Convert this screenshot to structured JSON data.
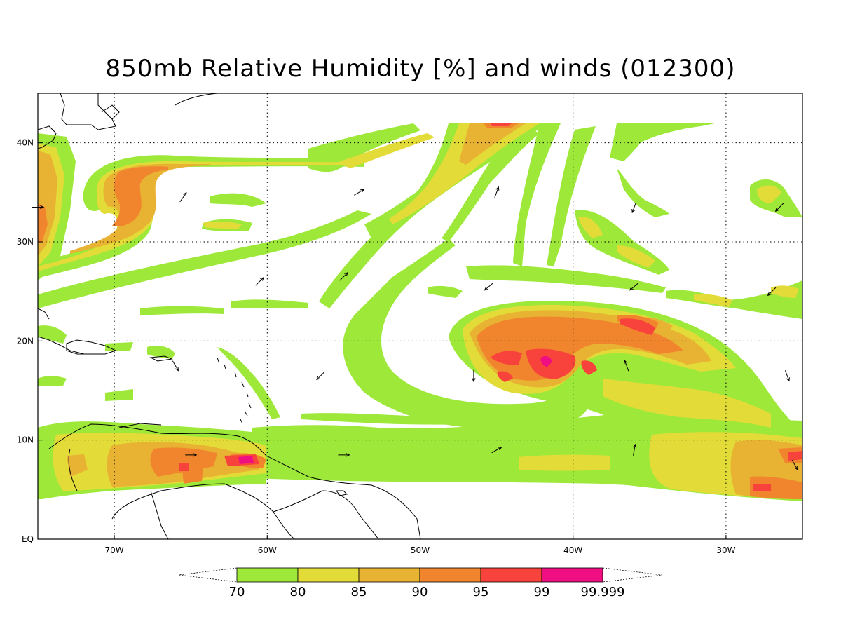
{
  "title": "850mb Relative Humidity [%] and winds (012300)",
  "colors": {
    "background": "#ffffff",
    "rh70": "#9ee83a",
    "rh80": "#e3dc38",
    "rh85": "#e8b232",
    "rh90": "#f1852d",
    "rh95": "#f8423c",
    "rh99": "#f00f82",
    "coast": "#000000"
  },
  "map": {
    "projection": "lat-lon",
    "lon_range": [
      -75,
      -25
    ],
    "lat_range": [
      0,
      45
    ],
    "grid": "dotted",
    "lon_ticks": [
      {
        "value": -70,
        "label": "70W"
      },
      {
        "value": -60,
        "label": "60W"
      },
      {
        "value": -50,
        "label": "50W"
      },
      {
        "value": -40,
        "label": "40W"
      },
      {
        "value": -30,
        "label": "30W"
      }
    ],
    "lat_ticks": [
      {
        "value": 0,
        "label": "EQ"
      },
      {
        "value": 10,
        "label": "10N"
      },
      {
        "value": 20,
        "label": "20N"
      },
      {
        "value": 30,
        "label": "30N"
      },
      {
        "value": 40,
        "label": "40N"
      }
    ]
  },
  "colorbar": {
    "labels": [
      "70",
      "80",
      "85",
      "90",
      "95",
      "99",
      "99.999"
    ],
    "fills": [
      "#9ee83a",
      "#e3dc38",
      "#e8b232",
      "#f1852d",
      "#f8423c",
      "#f00f82"
    ]
  },
  "wind_vectors": [
    {
      "lon": -65.5,
      "lat": 34.5,
      "dir": 35
    },
    {
      "lon": -60.5,
      "lat": 26.0,
      "dir": 45
    },
    {
      "lon": -54.0,
      "lat": 35.0,
      "dir": 60
    },
    {
      "lon": -55.0,
      "lat": 26.5,
      "dir": 45
    },
    {
      "lon": -45.0,
      "lat": 35.0,
      "dir": 20
    },
    {
      "lon": -36.0,
      "lat": 33.5,
      "dir": 200
    },
    {
      "lon": -45.5,
      "lat": 25.5,
      "dir": 230
    },
    {
      "lon": -36.0,
      "lat": 25.5,
      "dir": 230
    },
    {
      "lon": -26.5,
      "lat": 33.5,
      "dir": 225
    },
    {
      "lon": -27.0,
      "lat": 25.0,
      "dir": 225
    },
    {
      "lon": -66.0,
      "lat": 17.5,
      "dir": 150
    },
    {
      "lon": -56.5,
      "lat": 16.5,
      "dir": 225
    },
    {
      "lon": -46.5,
      "lat": 16.5,
      "dir": 180
    },
    {
      "lon": -36.5,
      "lat": 17.5,
      "dir": 340
    },
    {
      "lon": -26.0,
      "lat": 16.5,
      "dir": 160
    },
    {
      "lon": -65.0,
      "lat": 8.5,
      "dir": 90
    },
    {
      "lon": -55.0,
      "lat": 8.5,
      "dir": 90
    },
    {
      "lon": -45.0,
      "lat": 9.0,
      "dir": 60
    },
    {
      "lon": -36.0,
      "lat": 9.0,
      "dir": 10
    },
    {
      "lon": -25.5,
      "lat": 7.5,
      "dir": 150
    },
    {
      "lon": -75.0,
      "lat": 33.5,
      "dir": 90
    }
  ]
}
